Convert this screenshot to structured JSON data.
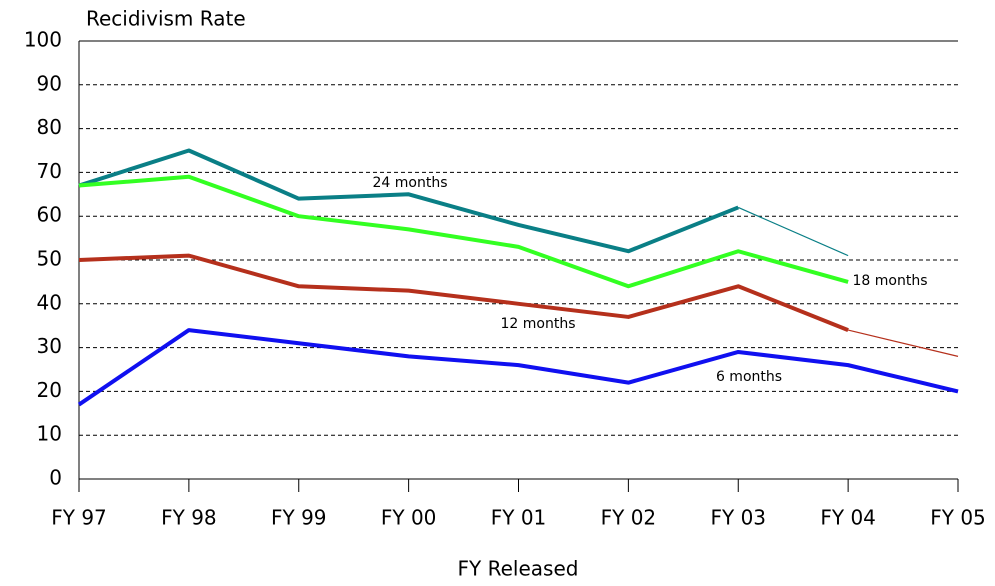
{
  "chart_data": {
    "type": "line",
    "y_label": "Recidivism Rate",
    "x_label": "FY Released",
    "categories": [
      "FY 97",
      "FY 98",
      "FY 99",
      "FY 00",
      "FY 01",
      "FY 02",
      "FY 03",
      "FY 04",
      "FY 05"
    ],
    "ylim": [
      0,
      100
    ],
    "yticks": [
      0,
      10,
      20,
      30,
      40,
      50,
      60,
      70,
      80,
      90,
      100
    ],
    "grid": true,
    "series": [
      {
        "name": "24 months",
        "color": "#0a7f86",
        "values": [
          67,
          75,
          64,
          65,
          58,
          52,
          62,
          51,
          null
        ],
        "projected_from": 6
      },
      {
        "name": "18 months",
        "color": "#33ff22",
        "values": [
          67,
          69,
          60,
          57,
          53,
          44,
          52,
          45,
          null
        ]
      },
      {
        "name": "12 months",
        "color": "#b5301c",
        "values": [
          50,
          51,
          44,
          43,
          40,
          37,
          44,
          34,
          28
        ],
        "projected_from": 7
      },
      {
        "name": "6 months",
        "color": "#1010f0",
        "values": [
          17,
          34,
          31,
          28,
          26,
          22,
          29,
          26,
          20
        ]
      }
    ]
  }
}
